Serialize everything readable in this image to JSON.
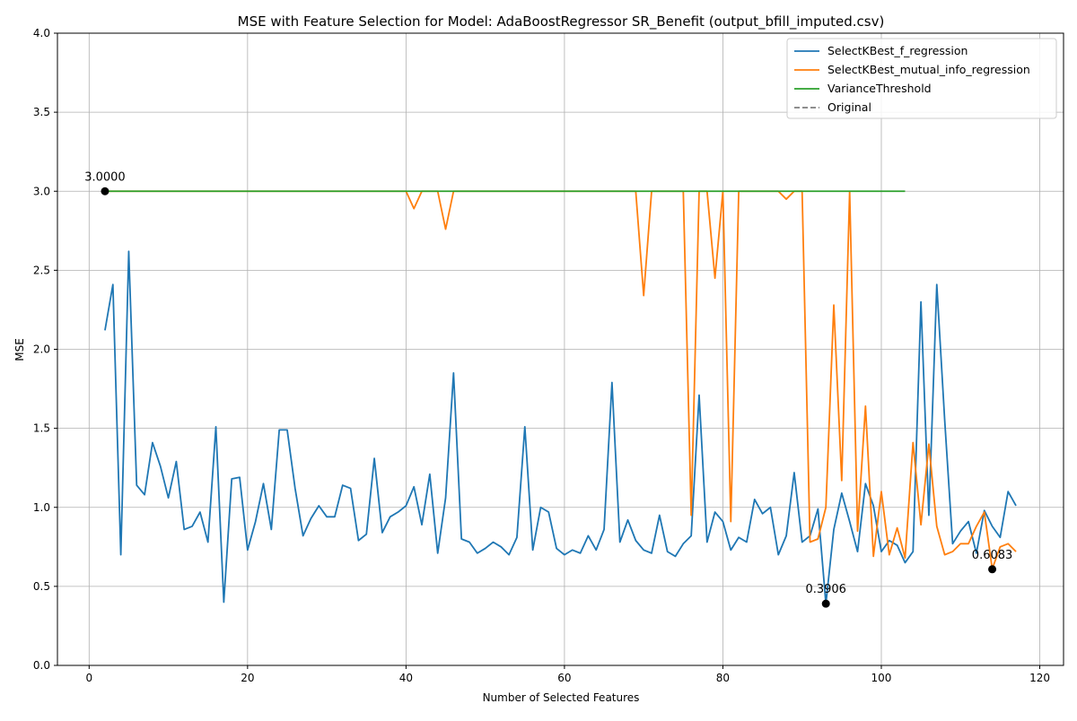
{
  "chart_data": {
    "type": "line",
    "title": "MSE with Feature Selection for Model: AdaBoostRegressor SR_Benefit (output_bfill_imputed.csv)",
    "xlabel": "Number of Selected Features",
    "ylabel": "MSE",
    "xlim": [
      -4,
      123
    ],
    "ylim": [
      0,
      4
    ],
    "xticks": [
      0,
      20,
      40,
      60,
      80,
      100,
      120
    ],
    "yticks": [
      0.0,
      0.5,
      1.0,
      1.5,
      2.0,
      2.5,
      3.0,
      3.5,
      4.0
    ],
    "ytick_labels": [
      "0.0",
      "0.5",
      "1.0",
      "1.5",
      "2.0",
      "2.5",
      "3.0",
      "3.5",
      "4.0"
    ],
    "grid": true,
    "legend_position": "top-right",
    "series": [
      {
        "name": "SelectKBest_f_regression",
        "color": "#1f77b4",
        "style": "solid",
        "x_start": 2,
        "values": [
          2.12,
          2.41,
          0.7,
          2.62,
          1.14,
          1.08,
          1.41,
          1.26,
          1.06,
          1.29,
          0.86,
          0.88,
          0.97,
          0.78,
          1.51,
          0.4,
          1.18,
          1.19,
          0.73,
          0.91,
          1.15,
          0.86,
          1.49,
          1.49,
          1.12,
          0.82,
          0.93,
          1.01,
          0.94,
          0.94,
          1.14,
          1.12,
          0.79,
          0.83,
          1.31,
          0.84,
          0.94,
          0.97,
          1.01,
          1.13,
          0.89,
          1.21,
          0.71,
          1.06,
          1.85,
          0.8,
          0.78,
          0.71,
          0.74,
          0.78,
          0.75,
          0.7,
          0.81,
          1.51,
          0.73,
          1.0,
          0.97,
          0.74,
          0.7,
          0.73,
          0.71,
          0.82,
          0.73,
          0.86,
          1.79,
          0.78,
          0.92,
          0.79,
          0.73,
          0.71,
          0.95,
          0.72,
          0.69,
          0.77,
          0.82,
          1.71,
          0.78,
          0.97,
          0.91,
          0.73,
          0.81,
          0.78,
          1.05,
          0.96,
          1.0,
          0.7,
          0.82,
          1.22,
          0.78,
          0.82,
          0.99,
          0.39,
          0.86,
          1.09,
          0.91,
          0.72,
          1.15,
          1.01,
          0.72,
          0.79,
          0.76,
          0.65,
          0.72,
          2.3,
          0.95,
          2.41,
          1.55,
          0.77,
          0.85,
          0.91,
          0.71,
          0.98,
          0.88,
          0.81,
          1.1,
          1.01
        ]
      },
      {
        "name": "SelectKBest_mutual_info_regression",
        "color": "#ff7f0e",
        "style": "solid",
        "x_start": 2,
        "values": [
          3.0,
          3.0,
          3.0,
          3.0,
          3.0,
          3.0,
          3.0,
          3.0,
          3.0,
          3.0,
          3.0,
          3.0,
          3.0,
          3.0,
          3.0,
          3.0,
          3.0,
          3.0,
          3.0,
          3.0,
          3.0,
          3.0,
          3.0,
          3.0,
          3.0,
          3.0,
          3.0,
          3.0,
          3.0,
          3.0,
          3.0,
          3.0,
          3.0,
          3.0,
          3.0,
          3.0,
          3.0,
          3.0,
          3.0,
          2.89,
          3.0,
          3.0,
          3.0,
          2.76,
          3.0,
          3.0,
          3.0,
          3.0,
          3.0,
          3.0,
          3.0,
          3.0,
          3.0,
          3.0,
          3.0,
          3.0,
          3.0,
          3.0,
          3.0,
          3.0,
          3.0,
          3.0,
          3.0,
          3.0,
          3.0,
          3.0,
          3.0,
          3.0,
          2.34,
          3.0,
          3.0,
          3.0,
          3.0,
          3.0,
          0.95,
          3.0,
          3.0,
          2.45,
          3.0,
          0.91,
          3.0,
          3.0,
          3.0,
          3.0,
          3.0,
          3.0,
          2.95,
          3.0,
          3.0,
          0.78,
          0.8,
          1.0,
          2.28,
          1.17,
          3.0,
          0.85,
          1.64,
          0.69,
          1.1,
          0.7,
          0.87,
          0.68,
          1.41,
          0.89,
          1.4,
          0.88,
          0.7,
          0.72,
          0.77,
          0.77,
          0.88,
          0.97,
          0.61,
          0.75,
          0.77,
          0.72
        ]
      },
      {
        "name": "VarianceThreshold",
        "color": "#2ca02c",
        "style": "solid",
        "x_start": 2,
        "x_end": 103,
        "constant": 3.0
      },
      {
        "name": "Original",
        "color": "#7f7f7f",
        "style": "dashed",
        "legend_only": true
      }
    ],
    "annotations": [
      {
        "x": 2,
        "y": 3.0,
        "text": "3.0000"
      },
      {
        "x": 93,
        "y": 0.3906,
        "text": "0.3906"
      },
      {
        "x": 114,
        "y": 0.6083,
        "text": "0.6083"
      }
    ]
  }
}
